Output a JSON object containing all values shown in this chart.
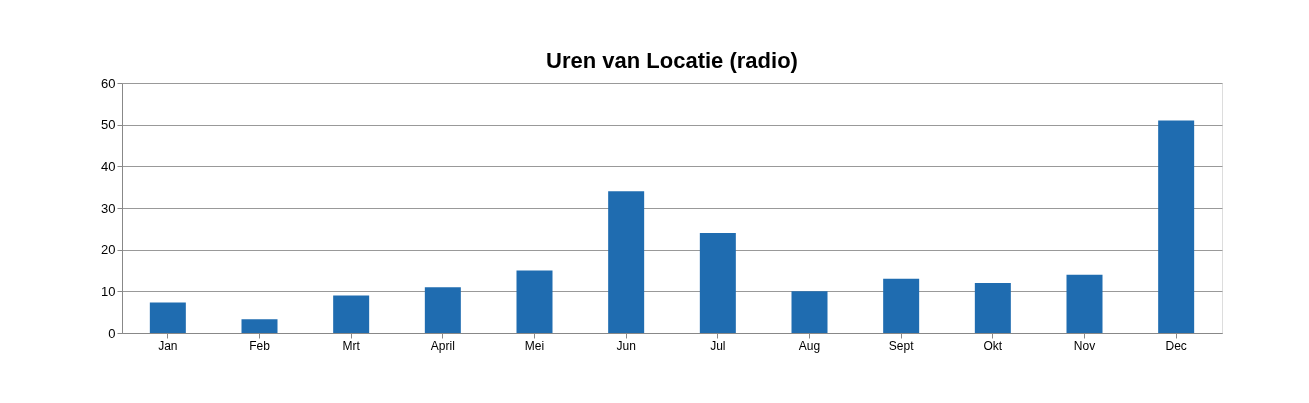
{
  "chart_data": {
    "type": "bar",
    "title": "Uren van Locatie (radio)",
    "categories": [
      "Jan",
      "Feb",
      "Mrt",
      "April",
      "Mei",
      "Jun",
      "Jul",
      "Aug",
      "Sept",
      "Okt",
      "Nov",
      "Dec"
    ],
    "values": [
      7.3,
      3.3,
      9,
      11,
      15,
      34,
      24,
      10,
      13,
      12,
      14,
      51
    ],
    "color": "#1f6cb0",
    "ylim": [
      0,
      60
    ],
    "yticks": [
      0,
      10,
      20,
      30,
      40,
      50,
      60
    ],
    "grid": "y"
  }
}
